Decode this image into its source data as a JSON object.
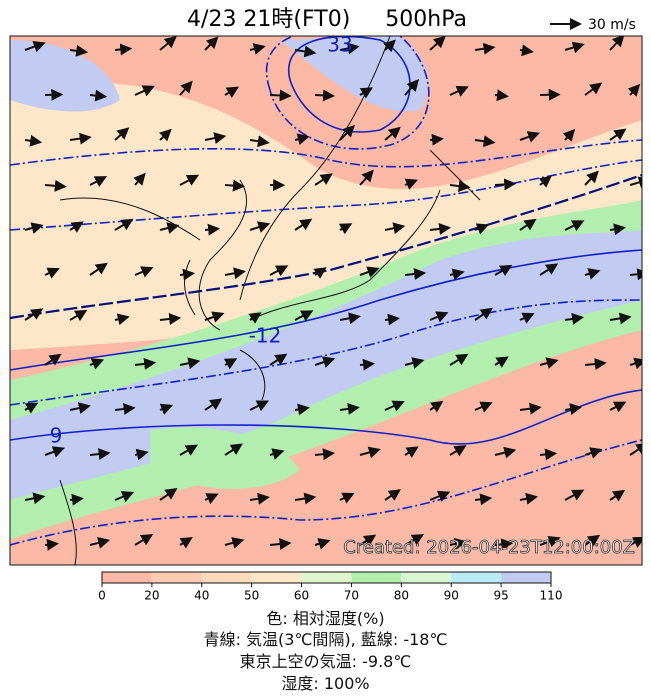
{
  "header": {
    "title": "4/23 21時(FT0)     500hPa",
    "legend": "30 m/s"
  },
  "map": {
    "contour_labels": [
      "33",
      "-12",
      "9"
    ],
    "created": "Created: 2026-04-23T12:00:00Z"
  },
  "colorbar": {
    "ticks": [
      0,
      20,
      40,
      50,
      60,
      70,
      80,
      90,
      95,
      110
    ],
    "colors": [
      "#fbb9a6",
      "#fccbb4",
      "#fdd9be",
      "#fee7c9",
      "#dff5cf",
      "#b2eeae",
      "#d9f7d3",
      "#b9ecf7",
      "#c2cbf2"
    ]
  },
  "caption": [
    "色: 相対湿度(%)",
    "青線: 気温(3℃間隔), 藍線: -18℃",
    "東京上空の気温: -9.8℃",
    "湿度: 100%"
  ]
}
